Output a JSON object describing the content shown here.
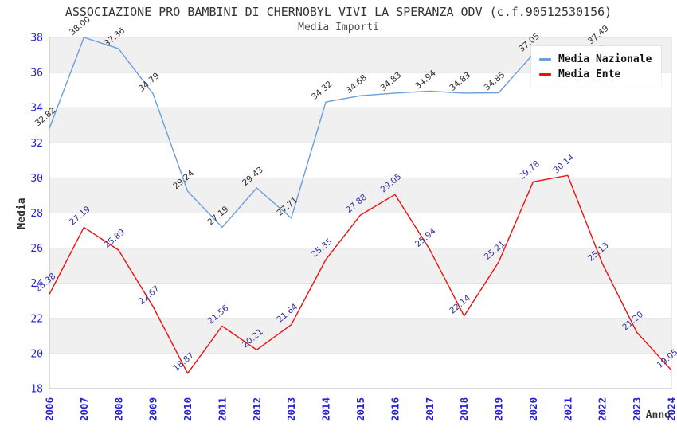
{
  "header": {
    "title": "ASSOCIAZIONE PRO BAMBINI DI CHERNOBYL VIVI LA SPERANZA ODV (c.f.90512530156)",
    "subtitle": "Media Importi"
  },
  "axes": {
    "y_title": "Media",
    "x_title": "Anno",
    "y_min": 18,
    "y_max": 38,
    "y_tick_step": 2,
    "tick_label_color": "#2222DD",
    "band_colors": [
      "#F0F0F0",
      "#FFFFFF"
    ]
  },
  "legend": {
    "items": [
      {
        "label": "Media Nazionale",
        "color": "#6D9EDC"
      },
      {
        "label": "Media Ente",
        "color": "#EE1111"
      }
    ]
  },
  "chart_data": {
    "type": "line",
    "title": "ASSOCIAZIONE PRO BAMBINI DI CHERNOBYL VIVI LA SPERANZA ODV (c.f.90512530156)",
    "subtitle": "Media Importi",
    "xlabel": "Anno",
    "ylabel": "Media",
    "ylim": [
      18,
      38
    ],
    "grid": "horizontal-bands",
    "legend_position": "top-right",
    "x": [
      2006,
      2007,
      2008,
      2009,
      2010,
      2011,
      2012,
      2013,
      2014,
      2015,
      2016,
      2017,
      2018,
      2019,
      2020,
      2021,
      2022,
      2023,
      2024
    ],
    "series": [
      {
        "name": "Media Nazionale",
        "color": "#6D9EDC",
        "label_color": "#303030",
        "values": [
          32.82,
          38.0,
          37.36,
          34.79,
          29.24,
          27.19,
          29.43,
          27.71,
          34.32,
          34.68,
          34.83,
          34.94,
          34.83,
          34.85,
          37.05,
          37.2,
          37.49,
          null,
          null
        ],
        "labels": [
          "32.82",
          "38.00",
          "37.36",
          "34.79",
          "29.24",
          "27.19",
          "29.43",
          "27.71",
          "34.32",
          "34.68",
          "34.83",
          "34.94",
          "34.83",
          "34.85",
          "37.05",
          "",
          "37.49",
          "",
          ""
        ]
      },
      {
        "name": "Media Ente",
        "color": "#EE1111",
        "label_color": "#32329E",
        "values": [
          23.38,
          27.19,
          25.89,
          22.67,
          18.87,
          21.56,
          20.21,
          21.64,
          25.35,
          27.88,
          29.05,
          25.94,
          22.14,
          25.21,
          29.78,
          30.14,
          25.13,
          21.2,
          19.05
        ],
        "labels": [
          "23.38",
          "27.19",
          "25.89",
          "22.67",
          "18.87",
          "21.56",
          "20.21",
          "21.64",
          "25.35",
          "27.88",
          "29.05",
          "25.94",
          "22.14",
          "25.21",
          "29.78",
          "30.14",
          "25.13",
          "21.20",
          "19.05"
        ]
      }
    ]
  }
}
